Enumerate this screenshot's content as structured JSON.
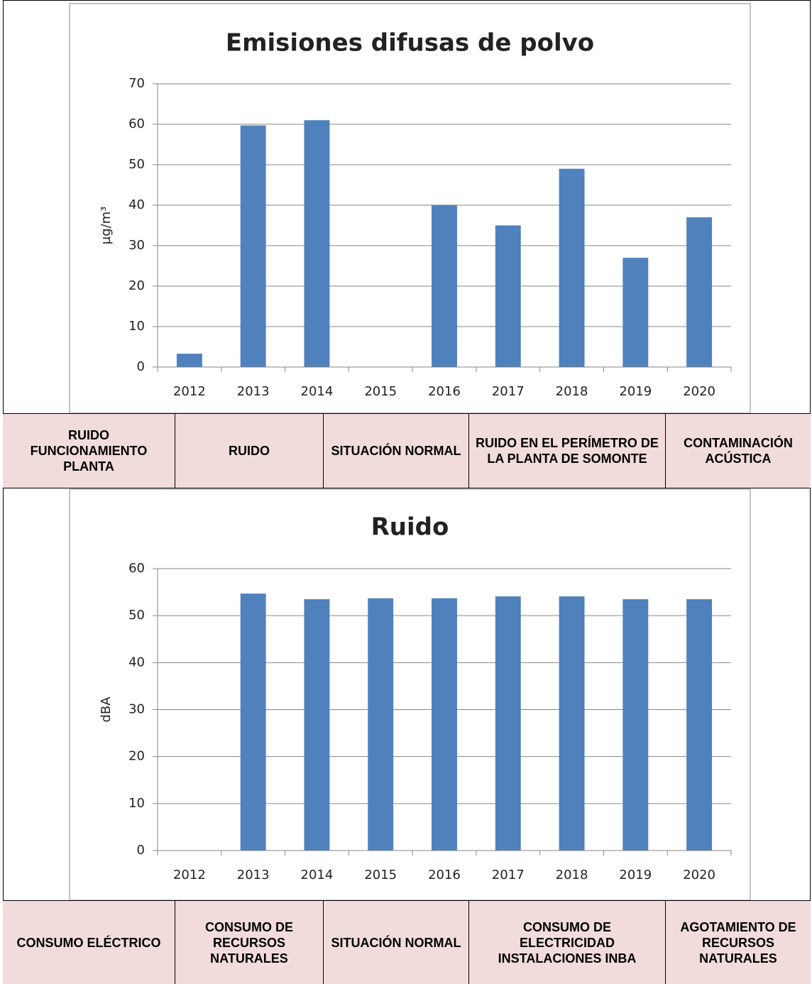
{
  "chart_data": [
    {
      "type": "bar",
      "title": "Emisiones difusas de polvo",
      "y_label": "µg/m³",
      "categories": [
        "2012",
        "2013",
        "2014",
        "2015",
        "2016",
        "2017",
        "2018",
        "2019",
        "2020"
      ],
      "values": [
        3.3,
        59.7,
        61,
        null,
        40,
        35,
        49,
        27,
        37
      ],
      "color": "#4f81bd",
      "ylim": [
        0,
        70
      ],
      "yticks": [
        0,
        10,
        20,
        30,
        40,
        50,
        60,
        70
      ],
      "grid": true
    },
    {
      "type": "bar",
      "title": "Ruido",
      "y_label": "dBA",
      "categories": [
        "2012",
        "2013",
        "2014",
        "2015",
        "2016",
        "2017",
        "2018",
        "2019",
        "2020"
      ],
      "values": [
        null,
        54.7,
        53.5,
        53.7,
        53.7,
        54.1,
        54.1,
        53.5,
        53.5
      ],
      "color": "#4f81bd",
      "ylim": [
        0,
        60
      ],
      "yticks": [
        0,
        10,
        20,
        30,
        40,
        50,
        60
      ],
      "grid": true
    }
  ],
  "table": {
    "rows": [
      [
        "RUIDO FUNCIONAMIENTO PLANTA",
        "RUIDO",
        "SITUACIÓN NORMAL",
        "RUIDO EN EL PERÍMETRO DE LA PLANTA DE SOMONTE",
        "CONTAMINACIÓN ACÚSTICA"
      ],
      [
        "CONSUMO ELÉCTRICO",
        "CONSUMO DE RECURSOS NATURALES",
        "SITUACIÓN NORMAL",
        "CONSUMO DE ELECTRICIDAD INSTALACIONES INBA",
        "AGOTAMIENTO DE RECURSOS NATURALES"
      ]
    ]
  }
}
